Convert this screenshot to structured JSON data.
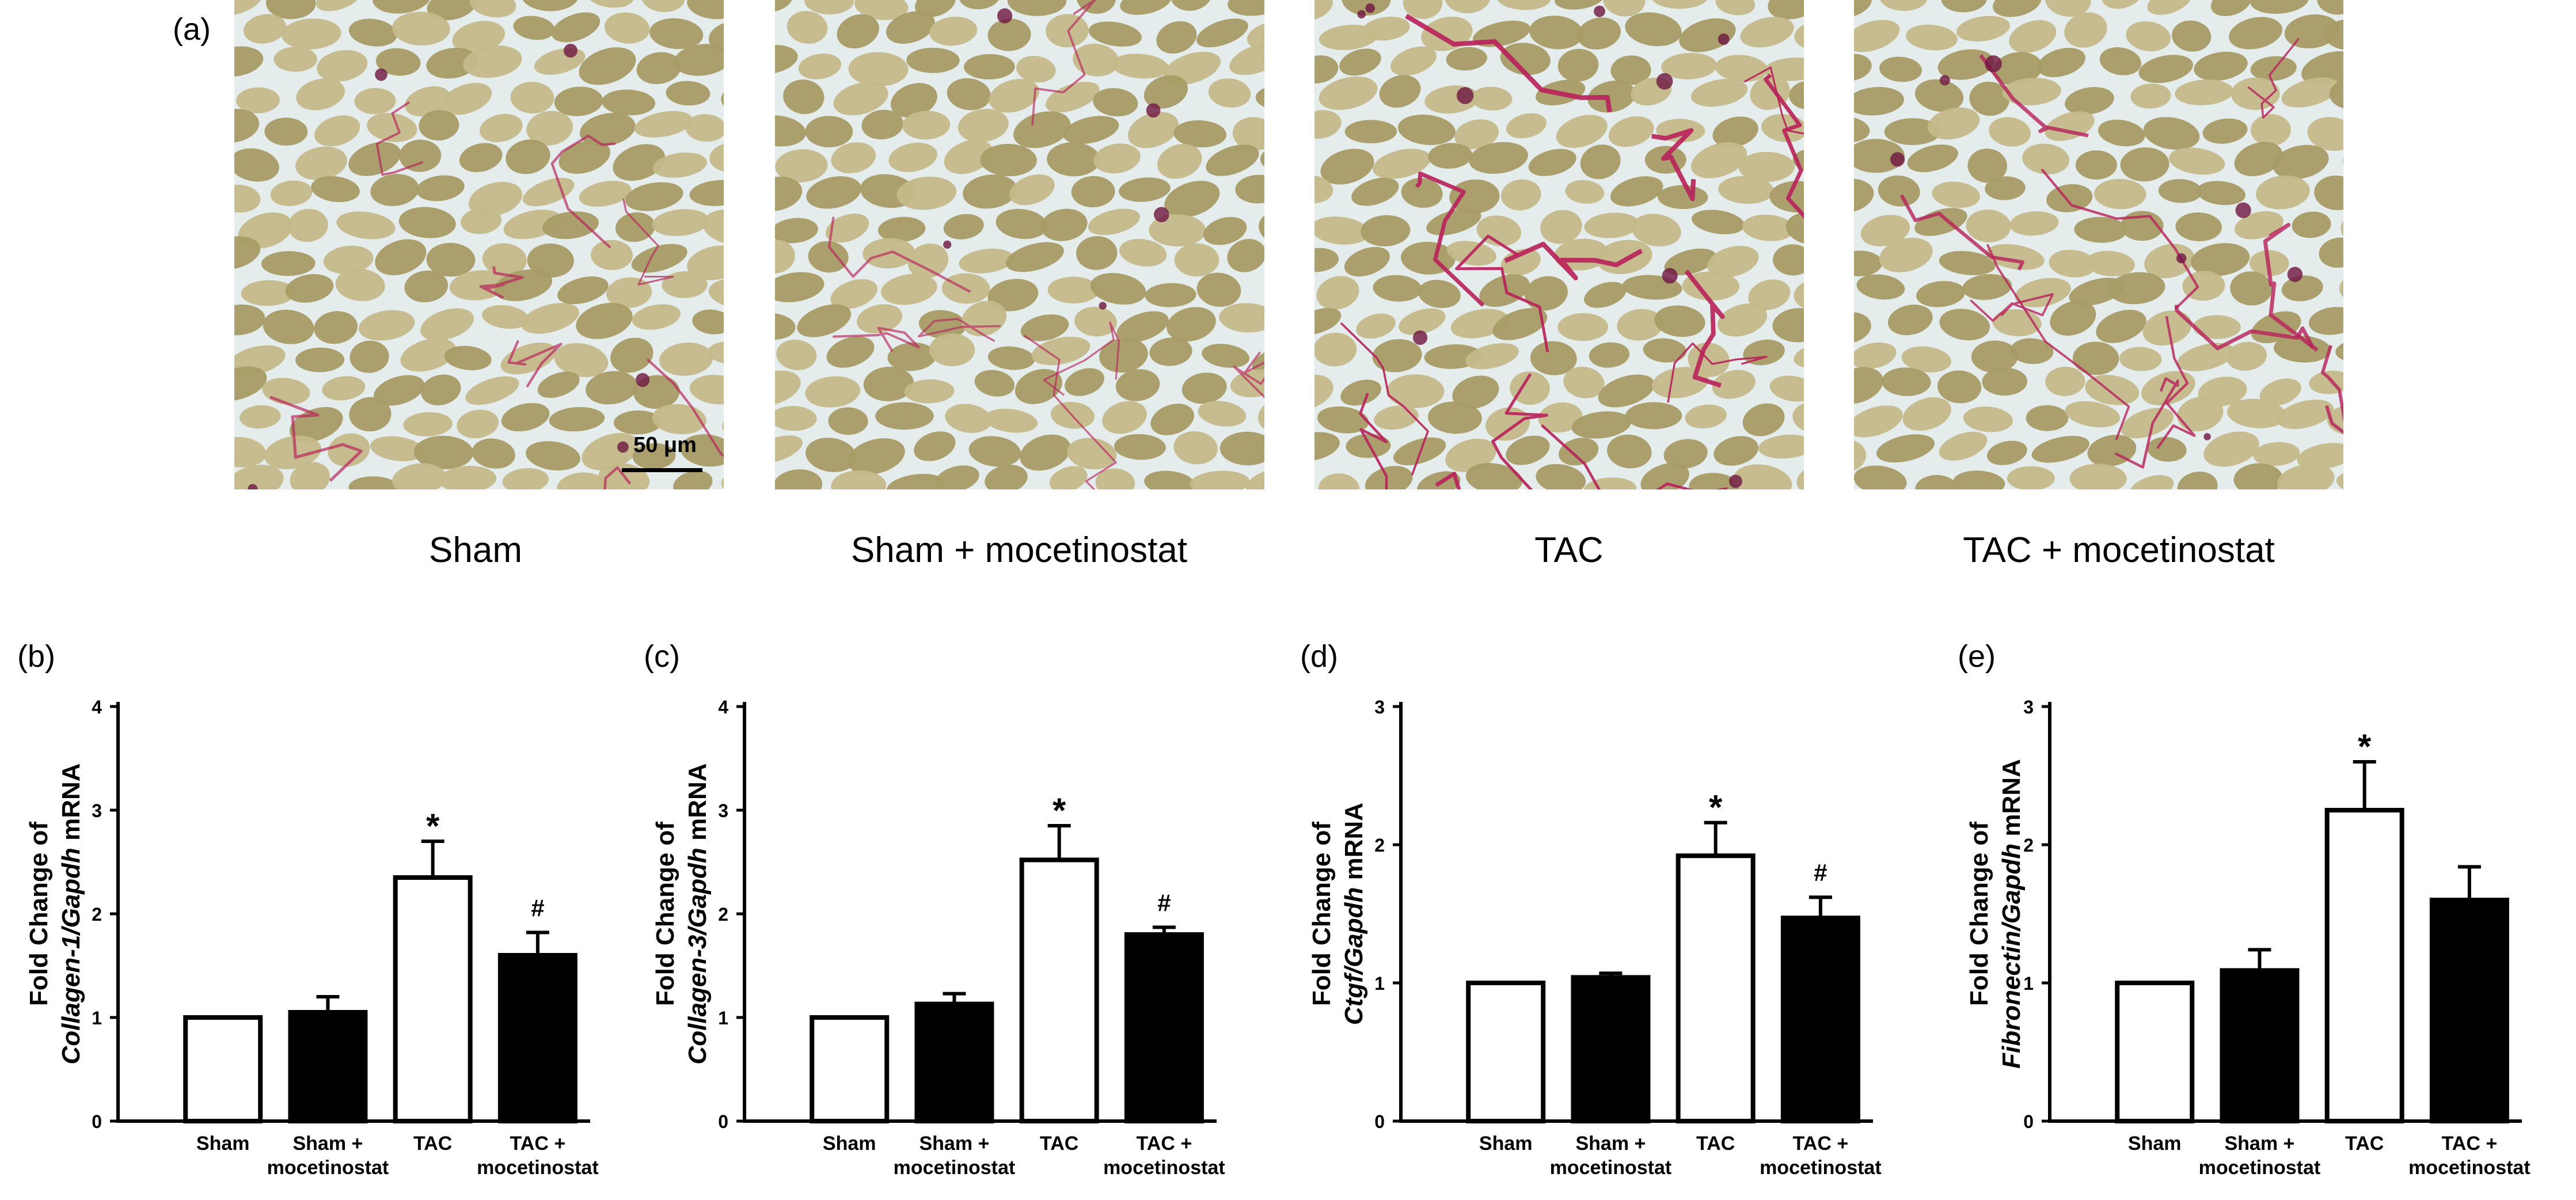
{
  "figure": {
    "panel_a_letter": "(a)",
    "scale_bar_label": "50 μm",
    "micrographs": [
      {
        "caption": "Sham"
      },
      {
        "caption": "Sham + mocetinostat"
      },
      {
        "caption": "TAC"
      },
      {
        "caption": "TAC + mocetinostat"
      }
    ]
  },
  "colors": {
    "tissue": "#c4b98a",
    "tissue_dark": "#a89c66",
    "gap": "#e4ecec",
    "collagen": "#b8205a",
    "bar_black": "#000000",
    "bar_white": "#ffffff"
  },
  "chart_data": [
    {
      "type": "bar",
      "panel": "(b)",
      "ylabel_prefix": "Fold Change of",
      "ylabel_gene": "Collagen-1/Gapdh",
      "ylabel_suffix": " mRNA",
      "ylim": [
        0,
        4
      ],
      "yticks": [
        0,
        1,
        2,
        3,
        4
      ],
      "categories": [
        [
          "Sham"
        ],
        [
          "Sham +",
          "mocetinostat"
        ],
        [
          "TAC"
        ],
        [
          "TAC +",
          "mocetinostat"
        ]
      ],
      "values": [
        1.0,
        1.05,
        2.35,
        1.6
      ],
      "errors": [
        0,
        0.15,
        0.35,
        0.22
      ],
      "fills": [
        "white",
        "black",
        "white",
        "black"
      ],
      "markers": [
        "",
        "",
        "*",
        "#"
      ]
    },
    {
      "type": "bar",
      "panel": "(c)",
      "ylabel_prefix": "Fold Change of",
      "ylabel_gene": "Collagen-3/Gapdh",
      "ylabel_suffix": " mRNA",
      "ylim": [
        0,
        4
      ],
      "yticks": [
        0,
        1,
        2,
        3,
        4
      ],
      "categories": [
        [
          "Sham"
        ],
        [
          "Sham +",
          "mocetinostat"
        ],
        [
          "TAC"
        ],
        [
          "TAC +",
          "mocetinostat"
        ]
      ],
      "values": [
        1.0,
        1.13,
        2.52,
        1.8
      ],
      "errors": [
        0,
        0.1,
        0.33,
        0.07
      ],
      "fills": [
        "white",
        "black",
        "white",
        "black"
      ],
      "markers": [
        "",
        "",
        "*",
        "#"
      ]
    },
    {
      "type": "bar",
      "panel": "(d)",
      "ylabel_prefix": "Fold Change of",
      "ylabel_gene": "Ctgf/Gapdh",
      "ylabel_suffix": " mRNA",
      "ylim": [
        0,
        3
      ],
      "yticks": [
        0,
        1,
        2,
        3
      ],
      "categories": [
        [
          "Sham"
        ],
        [
          "Sham +",
          "mocetinostat"
        ],
        [
          "TAC"
        ],
        [
          "TAC +",
          "mocetinostat"
        ]
      ],
      "values": [
        1.0,
        1.04,
        1.92,
        1.47
      ],
      "errors": [
        0,
        0.03,
        0.24,
        0.15
      ],
      "fills": [
        "white",
        "black",
        "white",
        "black"
      ],
      "markers": [
        "",
        "",
        "*",
        "#"
      ]
    },
    {
      "type": "bar",
      "panel": "(e)",
      "ylabel_prefix": "Fold Change of",
      "ylabel_gene": "Fibronectin/Gapdh",
      "ylabel_suffix": " mRNA",
      "ylim": [
        0,
        3
      ],
      "yticks": [
        0,
        1,
        2,
        3
      ],
      "categories": [
        [
          "Sham"
        ],
        [
          "Sham +",
          "mocetinostat"
        ],
        [
          "TAC"
        ],
        [
          "TAC +",
          "mocetinostat"
        ]
      ],
      "values": [
        1.0,
        1.09,
        2.25,
        1.6
      ],
      "errors": [
        0,
        0.15,
        0.35,
        0.24
      ],
      "fills": [
        "white",
        "black",
        "white",
        "black"
      ],
      "markers": [
        "",
        "",
        "*",
        ""
      ]
    }
  ]
}
